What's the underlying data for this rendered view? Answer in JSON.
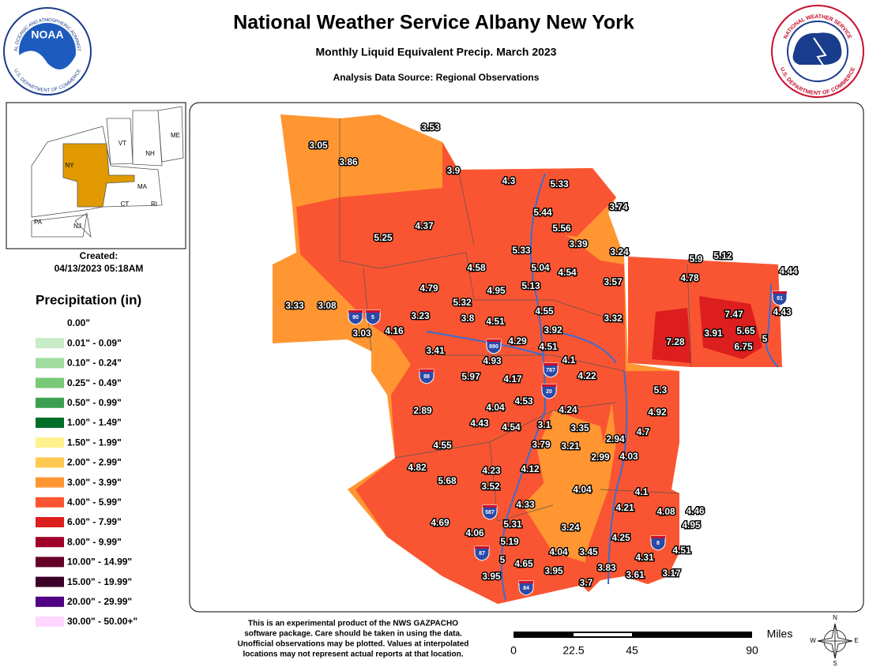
{
  "header": {
    "title": "National Weather Service Albany New York",
    "subtitle": "Monthly Liquid Equivalent Precip. March 2023",
    "source": "Analysis Data Source: Regional Observations"
  },
  "logos": {
    "noaa": "NOAA",
    "noaa_ring_top": "NATIONAL OCEANIC AND ATMOSPHERIC ADMINISTRATION",
    "noaa_ring_bottom": "U.S. DEPARTMENT OF COMMERCE",
    "nws_ring_top": "NATIONAL WEATHER SERVICE",
    "nws_ring_bottom": "U.S. DEPARTMENT OF COMMERCE"
  },
  "inset": {
    "states": [
      "ME",
      "VT",
      "NH",
      "NY",
      "MA",
      "CT",
      "RI",
      "PA",
      "NJ"
    ]
  },
  "created": {
    "label": "Created:",
    "timestamp": "04/13/2023 05:18AM"
  },
  "legend": {
    "title": "Precipitation (in)",
    "items": [
      {
        "label": "0.00\"",
        "color": "#ffffff"
      },
      {
        "label": "0.01\" - 0.09\"",
        "color": "#c8ebc8"
      },
      {
        "label": "0.10\" - 0.24\"",
        "color": "#a0dca0"
      },
      {
        "label": "0.25\" - 0.49\"",
        "color": "#78c878"
      },
      {
        "label": "0.50\" - 0.99\"",
        "color": "#3ca050"
      },
      {
        "label": "1.00\" - 1.49\"",
        "color": "#006e28"
      },
      {
        "label": "1.50\" - 1.99\"",
        "color": "#fff08c"
      },
      {
        "label": "2.00\" - 2.99\"",
        "color": "#ffc850"
      },
      {
        "label": "3.00\" - 3.99\"",
        "color": "#ff9632"
      },
      {
        "label": "4.00\" - 5.99\"",
        "color": "#fa5532"
      },
      {
        "label": "6.00\" - 7.99\"",
        "color": "#dc1e1e"
      },
      {
        "label": "8.00\" - 9.99\"",
        "color": "#a00028"
      },
      {
        "label": "10.00\" - 14.99\"",
        "color": "#640028"
      },
      {
        "label": "15.00\" - 19.99\"",
        "color": "#3c0028"
      },
      {
        "label": "20.00\" - 29.99\"",
        "color": "#500082"
      },
      {
        "label": "30.00\" - 50.00+\"",
        "color": "#ffd7ff"
      }
    ]
  },
  "stations": [
    "3.53",
    "3.05",
    "3.86",
    "3.9",
    "4.3",
    "5.33",
    "5.44",
    "3.74",
    "5.56",
    "4.37",
    "5.25",
    "3.39",
    "3.24",
    "5.33",
    "5.9",
    "5.12",
    "4.58",
    "5.04",
    "4.54",
    "4.44",
    "3.57",
    "4.78",
    "4.79",
    "4.95",
    "5.13",
    "5.32",
    "3.33",
    "3.08",
    "7.47",
    "4.43",
    "4.55",
    "3.23",
    "3.8",
    "4.51",
    "3.32",
    "3.03",
    "4.16",
    "3.92",
    "3.91",
    "5.65",
    "5",
    "4.29",
    "7.28",
    "6.75",
    "3.41",
    "4.51",
    "4.93",
    "4.1",
    "5.97",
    "4.17",
    "4.22",
    "5.3",
    "4.04",
    "4.53",
    "4.24",
    "4.92",
    "2.89",
    "4.43",
    "4.54",
    "3.1",
    "3.35",
    "4.7",
    "2.94",
    "4.55",
    "3.79",
    "3.21",
    "2.99",
    "4.03",
    "4.82",
    "4.23",
    "4.12",
    "5.68",
    "3.52",
    "4.04",
    "4.1",
    "4.33",
    "4.21",
    "4.46",
    "4.08",
    "4.95",
    "5.31",
    "3.24",
    "4.69",
    "4.06",
    "5.19",
    "4.25",
    "4.04",
    "3.45",
    "4.51",
    "5",
    "4.31",
    "4.65",
    "3.95",
    "3.83",
    "3.61",
    "3.17",
    "3.95",
    "3.7"
  ],
  "shields": [
    "90",
    "5",
    "890",
    "88",
    "787",
    "20",
    "87",
    "587",
    "84",
    "91",
    "8"
  ],
  "footer": {
    "disclaimer": [
      "This is an experimental product of the NWS GAZPACHO",
      "software package. Care should be taken in using the data.",
      "Unofficial observations may be plotted. Values at interpolated",
      "locations may not represent actual reports at that location."
    ]
  },
  "scale": {
    "unit": "Miles",
    "labels": [
      "0",
      "22.5",
      "45",
      "90"
    ]
  },
  "compass": [
    "N",
    "E",
    "S",
    "W"
  ]
}
